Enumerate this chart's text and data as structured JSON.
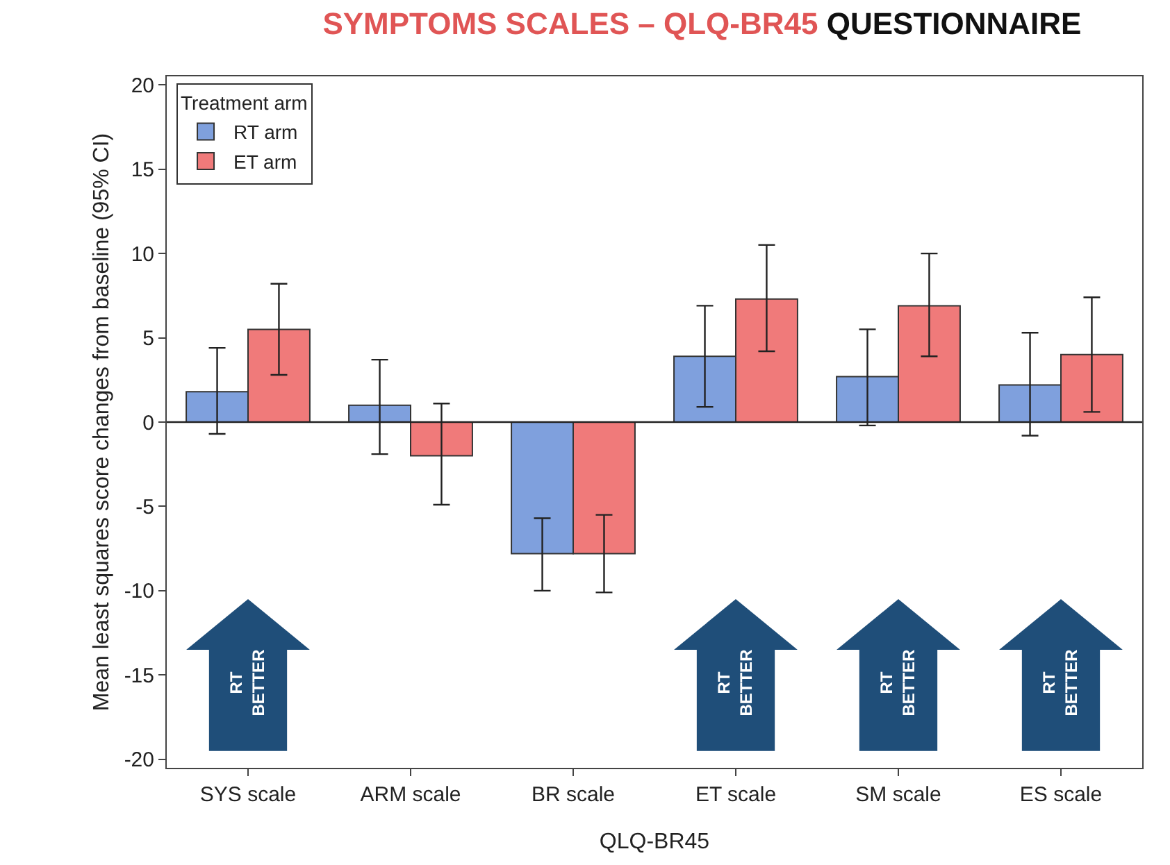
{
  "chart_data": {
    "type": "bar",
    "title": "SYMPTOMS SCALES – QLQ-BR45 QUESTIONNAIRE",
    "xlabel": "QLQ-BR45",
    "ylabel": "Mean least squares score changes from baseline (95% CI)",
    "legend_title": "Treatment arm",
    "categories": [
      "SYS scale",
      "ARM scale",
      "BR scale",
      "ET scale",
      "SM scale",
      "ES scale"
    ],
    "series": [
      {
        "name": "RT arm",
        "color": "#7fa0dd",
        "values": [
          1.8,
          1.0,
          -7.8,
          3.9,
          2.7,
          2.2
        ],
        "errors": [
          [
            -0.7,
            4.4
          ],
          [
            -1.9,
            3.7
          ],
          [
            -10.0,
            -5.7
          ],
          [
            0.9,
            6.9
          ],
          [
            -0.2,
            5.5
          ],
          [
            -0.8,
            5.3
          ]
        ]
      },
      {
        "name": "ET arm",
        "color": "#f07a7a",
        "values": [
          5.5,
          -2.0,
          -7.8,
          7.3,
          6.9,
          4.0
        ],
        "errors": [
          [
            2.8,
            8.2
          ],
          [
            -4.9,
            1.1
          ],
          [
            -10.1,
            -5.5
          ],
          [
            4.2,
            10.5
          ],
          [
            3.9,
            10.0
          ],
          [
            0.6,
            7.4
          ]
        ]
      }
    ],
    "ylim": [
      -20.5,
      20.5
    ],
    "yticks": [
      -20,
      -15,
      -10,
      -5,
      0,
      5,
      10,
      15,
      20
    ],
    "grid": false,
    "legend": "top left",
    "ref_lines": [
      {
        "axis": "y",
        "value": 0,
        "color": "#222222"
      }
    ],
    "annotations": [
      "RT\nBETTER",
      "RT\nBETTER",
      "RT\nBETTER",
      "RT\nBETTER"
    ]
  }
}
